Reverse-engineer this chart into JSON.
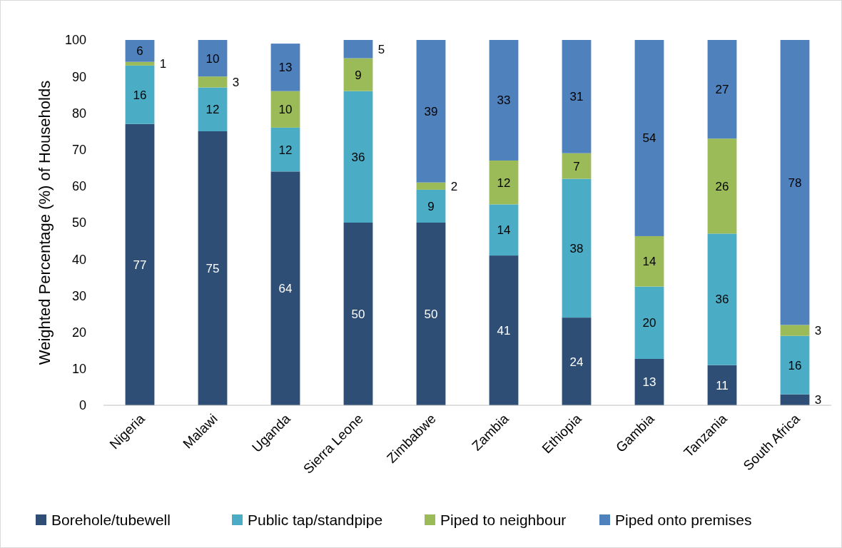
{
  "chart_data": {
    "type": "bar",
    "stacked": true,
    "ylabel": "Weighted Percentage (%) of Households",
    "categories": [
      "Nigeria",
      "Malawi",
      "Uganda",
      "Sierra Leone",
      "Zimbabwe",
      "Zambia",
      "Ethiopia",
      "Gambia",
      "Tanzania",
      "South Africa"
    ],
    "series": [
      {
        "name": "Borehole/tubewell",
        "color": "#2e4e75",
        "values": [
          77,
          75,
          64,
          50,
          50,
          41,
          24,
          12.7,
          11,
          3
        ],
        "value_labels": [
          "77",
          "75",
          "64",
          "50",
          "50",
          "41",
          "24",
          "13",
          "11",
          "3"
        ]
      },
      {
        "name": "Public tap/standpipe",
        "color": "#4bacc6",
        "values": [
          16,
          12,
          12,
          36,
          9,
          14,
          38,
          19.8,
          36,
          16
        ],
        "value_labels": [
          "16",
          "12",
          "12",
          "36",
          "9",
          "14",
          "38",
          "20",
          "36",
          "16"
        ]
      },
      {
        "name": "Piped to neighbour",
        "color": "#9bbb59",
        "values": [
          1,
          3,
          10,
          9,
          2,
          12,
          7,
          13.8,
          26,
          3
        ],
        "value_labels": [
          "1",
          "3",
          "10",
          "9",
          "2",
          "12",
          "7",
          "14",
          "26",
          "3"
        ]
      },
      {
        "name": "Piped onto premises",
        "color": "#4f81bd",
        "values": [
          6,
          10,
          13,
          5,
          39,
          33,
          31,
          53.7,
          27,
          78
        ],
        "value_labels": [
          "6",
          "10",
          "13",
          "5",
          "39",
          "33",
          "31",
          "54",
          "27",
          "78"
        ]
      }
    ],
    "ylim": [
      0,
      100
    ],
    "yticks": [
      0,
      10,
      20,
      30,
      40,
      50,
      60,
      70,
      80,
      90,
      100
    ],
    "grid": false,
    "legend": "bottom"
  }
}
